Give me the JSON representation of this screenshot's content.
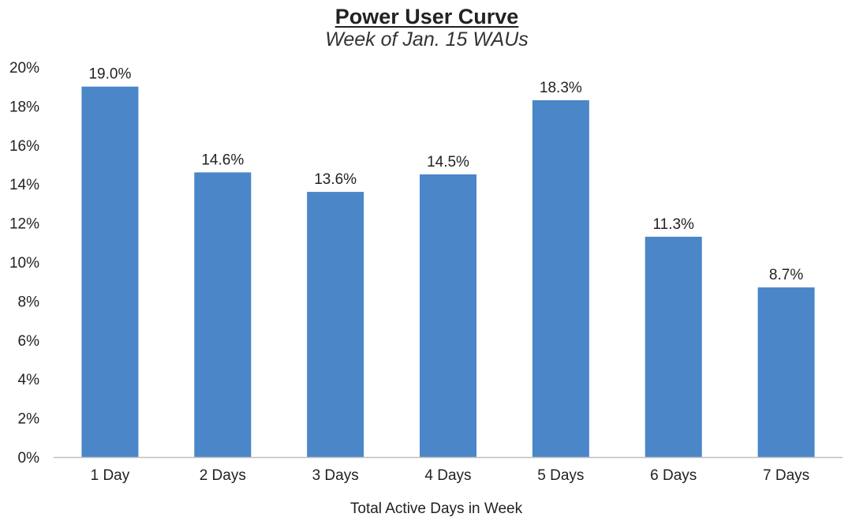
{
  "chart_data": {
    "type": "bar",
    "title": "Power User Curve",
    "subtitle": "Week of Jan. 15 WAUs",
    "xlabel": "Total Active Days in Week",
    "ylabel": "",
    "categories": [
      "1 Day",
      "2 Days",
      "3 Days",
      "4 Days",
      "5 Days",
      "6 Days",
      "7 Days"
    ],
    "values": [
      19.0,
      14.6,
      13.6,
      14.5,
      18.3,
      11.3,
      8.7
    ],
    "data_labels": [
      "19.0%",
      "14.6%",
      "13.6%",
      "14.5%",
      "18.3%",
      "11.3%",
      "8.7%"
    ],
    "ylim": [
      0,
      20
    ],
    "yticks": [
      0,
      2,
      4,
      6,
      8,
      10,
      12,
      14,
      16,
      18,
      20
    ],
    "ytick_labels": [
      "0%",
      "2%",
      "4%",
      "6%",
      "8%",
      "10%",
      "12%",
      "14%",
      "16%",
      "18%",
      "20%"
    ],
    "grid": false,
    "legend": "none",
    "colors": {
      "bar": "#4a86c8",
      "axis": "#bfbfbf",
      "text": "#222222"
    }
  }
}
